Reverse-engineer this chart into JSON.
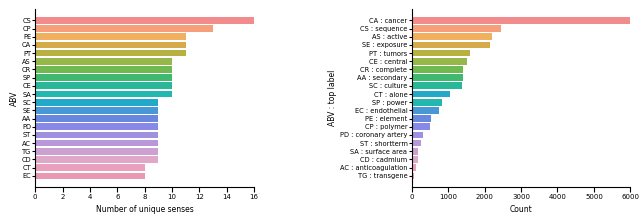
{
  "left_categories": [
    "CS",
    "CP",
    "PE",
    "CA",
    "PT",
    "AS",
    "CR",
    "SP",
    "CE",
    "SA",
    "SC",
    "SE",
    "AA",
    "PD",
    "ST",
    "AC",
    "TG",
    "CD",
    "CT",
    "EC"
  ],
  "left_values": [
    16,
    13,
    11,
    11,
    11,
    10,
    10,
    10,
    10,
    10,
    9,
    9,
    9,
    9,
    9,
    9,
    9,
    9,
    8,
    8
  ],
  "left_colors": [
    "#f28b8b",
    "#f5a07a",
    "#f0b060",
    "#d4ab48",
    "#b8b040",
    "#96b84a",
    "#70b850",
    "#40b870",
    "#28b898",
    "#22b8b0",
    "#22a8c8",
    "#4898d8",
    "#6888e0",
    "#8888e8",
    "#a090e0",
    "#b898d8",
    "#cca0d0",
    "#dfa8c8",
    "#e8a0bc",
    "#e898b0"
  ],
  "left_xlabel": "Number of unique senses",
  "left_ylabel": "ABV",
  "left_xlim": [
    0,
    16
  ],
  "right_categories": [
    "CA : cancer",
    "CS : sequence",
    "AS : active",
    "SE : exposure",
    "PT : tumors",
    "CE : central",
    "CR : complete",
    "AA : secondary",
    "SC : culture",
    "CT : alone",
    "SP : power",
    "EC : endothelial",
    "PE : element",
    "CP : polymer",
    "PD : coronary artery",
    "ST : shortterm",
    "SA : surface area",
    "CD : cadmium",
    "AC : anticoagulation",
    "TG : transgene"
  ],
  "right_values": [
    6000,
    2450,
    2200,
    2150,
    1600,
    1530,
    1420,
    1400,
    1380,
    1050,
    830,
    740,
    520,
    500,
    310,
    270,
    180,
    170,
    120,
    80
  ],
  "right_colors": [
    "#f28b8b",
    "#f5a07a",
    "#f0b060",
    "#d4ab48",
    "#b8b040",
    "#96b84a",
    "#70b850",
    "#40b870",
    "#28b898",
    "#22a8c8",
    "#22b8b0",
    "#4898d8",
    "#6888e0",
    "#8888e8",
    "#a090e0",
    "#b898d8",
    "#cca0d0",
    "#dfa8c8",
    "#e8a0bc",
    "#e898b0"
  ],
  "right_xlabel": "Count",
  "right_ylabel": "ABV : top label",
  "right_xlim": [
    0,
    6000
  ],
  "right_xticks": [
    0,
    1000,
    2000,
    3000,
    4000,
    5000,
    6000
  ]
}
